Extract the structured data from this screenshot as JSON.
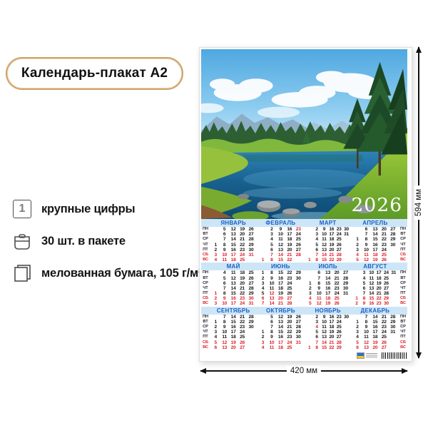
{
  "badge": {
    "label": "Календарь-плакат А2"
  },
  "features": [
    {
      "icon": "big-digit-icon",
      "icon_glyph": "1",
      "label": "крупные цифры"
    },
    {
      "icon": "package-icon",
      "label": "30 шт. в пакете"
    },
    {
      "icon": "paper-sheets-icon",
      "label": "мелованная бумага, 105 г/м²"
    }
  ],
  "dimensions": {
    "width_label": "420 мм",
    "height_label": "594 мм"
  },
  "colors": {
    "badge_border": "#cfa267",
    "month_name_blue": "#1a5ec4",
    "holiday_red": "#dd1f26",
    "header_band_bg": "#cde6f7"
  },
  "poster": {
    "year": "2026",
    "dow": [
      "ПН",
      "ВТ",
      "СР",
      "ЧТ",
      "ПТ",
      "СБ",
      "ВС"
    ],
    "bands": [
      {
        "months": [
          {
            "name": "ЯНВАРЬ",
            "extra_red": [],
            "rows": [
              [
                null,
                5,
                12,
                19,
                26
              ],
              [
                null,
                6,
                13,
                20,
                27
              ],
              [
                null,
                7,
                14,
                21,
                28
              ],
              [
                1,
                8,
                15,
                22,
                29
              ],
              [
                2,
                9,
                16,
                23,
                30
              ],
              [
                3,
                10,
                17,
                24,
                31
              ],
              [
                4,
                11,
                18,
                25,
                null
              ]
            ]
          },
          {
            "name": "ФЕВРАЛЬ",
            "extra_red": [
              23
            ],
            "rows": [
              [
                null,
                2,
                9,
                16,
                23
              ],
              [
                null,
                3,
                10,
                17,
                24
              ],
              [
                null,
                4,
                11,
                18,
                25
              ],
              [
                null,
                5,
                12,
                19,
                26
              ],
              [
                null,
                6,
                13,
                20,
                27
              ],
              [
                null,
                7,
                14,
                21,
                28
              ],
              [
                1,
                8,
                15,
                22,
                null
              ]
            ]
          },
          {
            "name": "МАРТ",
            "extra_red": [],
            "rows": [
              [
                null,
                2,
                9,
                16,
                23,
                30
              ],
              [
                null,
                3,
                10,
                17,
                24,
                31
              ],
              [
                null,
                4,
                11,
                18,
                25,
                null
              ],
              [
                null,
                5,
                12,
                19,
                26,
                null
              ],
              [
                null,
                6,
                13,
                20,
                27,
                null
              ],
              [
                null,
                7,
                14,
                21,
                28,
                null
              ],
              [
                1,
                8,
                15,
                22,
                29,
                null
              ]
            ]
          },
          {
            "name": "АПРЕЛЬ",
            "extra_red": [],
            "rows": [
              [
                null,
                6,
                13,
                20,
                27
              ],
              [
                null,
                7,
                14,
                21,
                28
              ],
              [
                1,
                8,
                15,
                22,
                29
              ],
              [
                2,
                9,
                16,
                23,
                30
              ],
              [
                3,
                10,
                17,
                24,
                null
              ],
              [
                4,
                11,
                18,
                25,
                null
              ],
              [
                5,
                12,
                19,
                26,
                null
              ]
            ]
          }
        ]
      },
      {
        "months": [
          {
            "name": "МАЙ",
            "extra_red": [
              1
            ],
            "rows": [
              [
                null,
                4,
                11,
                18,
                25
              ],
              [
                null,
                5,
                12,
                19,
                26
              ],
              [
                null,
                6,
                13,
                20,
                27
              ],
              [
                null,
                7,
                14,
                21,
                28
              ],
              [
                1,
                8,
                15,
                22,
                29
              ],
              [
                2,
                9,
                16,
                23,
                30
              ],
              [
                3,
                10,
                17,
                24,
                31
              ]
            ]
          },
          {
            "name": "ИЮНЬ",
            "extra_red": [
              12
            ],
            "rows": [
              [
                1,
                8,
                15,
                22,
                29
              ],
              [
                2,
                9,
                16,
                23,
                30
              ],
              [
                3,
                10,
                17,
                24,
                null
              ],
              [
                4,
                11,
                18,
                25,
                null
              ],
              [
                5,
                12,
                19,
                26,
                null
              ],
              [
                6,
                13,
                20,
                27,
                null
              ],
              [
                7,
                14,
                21,
                28,
                null
              ]
            ]
          },
          {
            "name": "ИЮЛЬ",
            "extra_red": [],
            "rows": [
              [
                null,
                6,
                13,
                20,
                27
              ],
              [
                null,
                7,
                14,
                21,
                28
              ],
              [
                1,
                8,
                15,
                22,
                29
              ],
              [
                2,
                9,
                16,
                23,
                30
              ],
              [
                3,
                10,
                17,
                24,
                31
              ],
              [
                4,
                11,
                18,
                25,
                null
              ],
              [
                5,
                12,
                19,
                26,
                null
              ]
            ]
          },
          {
            "name": "АВГУСТ",
            "extra_red": [],
            "rows": [
              [
                null,
                3,
                10,
                17,
                24,
                31
              ],
              [
                null,
                4,
                11,
                18,
                25,
                null
              ],
              [
                null,
                5,
                12,
                19,
                26,
                null
              ],
              [
                null,
                6,
                13,
                20,
                27,
                null
              ],
              [
                null,
                7,
                14,
                21,
                28,
                null
              ],
              [
                1,
                8,
                15,
                22,
                29,
                null
              ],
              [
                2,
                9,
                16,
                23,
                30,
                null
              ]
            ]
          }
        ]
      },
      {
        "months": [
          {
            "name": "СЕНТЯБРЬ",
            "extra_red": [],
            "rows": [
              [
                null,
                7,
                14,
                21,
                28
              ],
              [
                1,
                8,
                15,
                22,
                29
              ],
              [
                2,
                9,
                16,
                23,
                30
              ],
              [
                3,
                10,
                17,
                24,
                null
              ],
              [
                4,
                11,
                18,
                25,
                null
              ],
              [
                5,
                12,
                19,
                26,
                null
              ],
              [
                6,
                13,
                20,
                27,
                null
              ]
            ]
          },
          {
            "name": "ОКТЯБРЬ",
            "extra_red": [],
            "rows": [
              [
                null,
                5,
                12,
                19,
                26
              ],
              [
                null,
                6,
                13,
                20,
                27
              ],
              [
                null,
                7,
                14,
                21,
                28
              ],
              [
                1,
                8,
                15,
                22,
                29
              ],
              [
                2,
                9,
                16,
                23,
                30
              ],
              [
                3,
                10,
                17,
                24,
                31
              ],
              [
                4,
                11,
                18,
                25,
                null
              ]
            ]
          },
          {
            "name": "НОЯБРЬ",
            "extra_red": [
              4
            ],
            "rows": [
              [
                null,
                2,
                9,
                16,
                23,
                30
              ],
              [
                null,
                3,
                10,
                17,
                24,
                null
              ],
              [
                null,
                4,
                11,
                18,
                25,
                null
              ],
              [
                null,
                5,
                12,
                19,
                26,
                null
              ],
              [
                null,
                6,
                13,
                20,
                27,
                null
              ],
              [
                null,
                7,
                14,
                21,
                28,
                null
              ],
              [
                1,
                8,
                15,
                22,
                29,
                null
              ]
            ]
          },
          {
            "name": "ДЕКАБРЬ",
            "extra_red": [],
            "rows": [
              [
                null,
                7,
                14,
                21,
                28
              ],
              [
                1,
                8,
                15,
                22,
                29
              ],
              [
                2,
                9,
                16,
                23,
                30
              ],
              [
                3,
                10,
                17,
                24,
                31
              ],
              [
                4,
                11,
                18,
                25,
                null
              ],
              [
                5,
                12,
                19,
                26,
                null
              ],
              [
                6,
                13,
                20,
                27,
                null
              ]
            ]
          }
        ]
      }
    ]
  }
}
